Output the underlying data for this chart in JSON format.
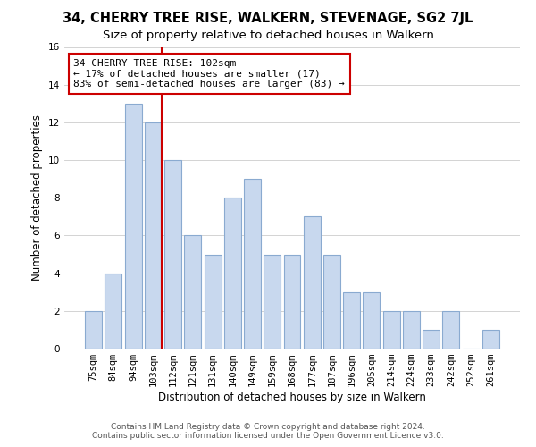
{
  "title": "34, CHERRY TREE RISE, WALKERN, STEVENAGE, SG2 7JL",
  "subtitle": "Size of property relative to detached houses in Walkern",
  "xlabel": "Distribution of detached houses by size in Walkern",
  "ylabel": "Number of detached properties",
  "bar_labels": [
    "75sqm",
    "84sqm",
    "94sqm",
    "103sqm",
    "112sqm",
    "121sqm",
    "131sqm",
    "140sqm",
    "149sqm",
    "159sqm",
    "168sqm",
    "177sqm",
    "187sqm",
    "196sqm",
    "205sqm",
    "214sqm",
    "224sqm",
    "233sqm",
    "242sqm",
    "252sqm",
    "261sqm"
  ],
  "bar_values": [
    2,
    4,
    13,
    12,
    10,
    6,
    5,
    8,
    9,
    5,
    5,
    7,
    5,
    3,
    3,
    2,
    2,
    1,
    2,
    0,
    1
  ],
  "bar_color": "#c8d8ee",
  "bar_edge_color": "#8aaad0",
  "vline_color": "#cc0000",
  "annotation_line1": "34 CHERRY TREE RISE: 102sqm",
  "annotation_line2": "← 17% of detached houses are smaller (17)",
  "annotation_line3": "83% of semi-detached houses are larger (83) →",
  "annotation_box_color": "#ffffff",
  "annotation_box_edge": "#cc0000",
  "ylim": [
    0,
    16
  ],
  "yticks": [
    0,
    2,
    4,
    6,
    8,
    10,
    12,
    14,
    16
  ],
  "footer_line1": "Contains HM Land Registry data © Crown copyright and database right 2024.",
  "footer_line2": "Contains public sector information licensed under the Open Government Licence v3.0.",
  "title_fontsize": 10.5,
  "subtitle_fontsize": 9.5,
  "axis_label_fontsize": 8.5,
  "tick_fontsize": 7.5,
  "annotation_fontsize": 8,
  "footer_fontsize": 6.5
}
